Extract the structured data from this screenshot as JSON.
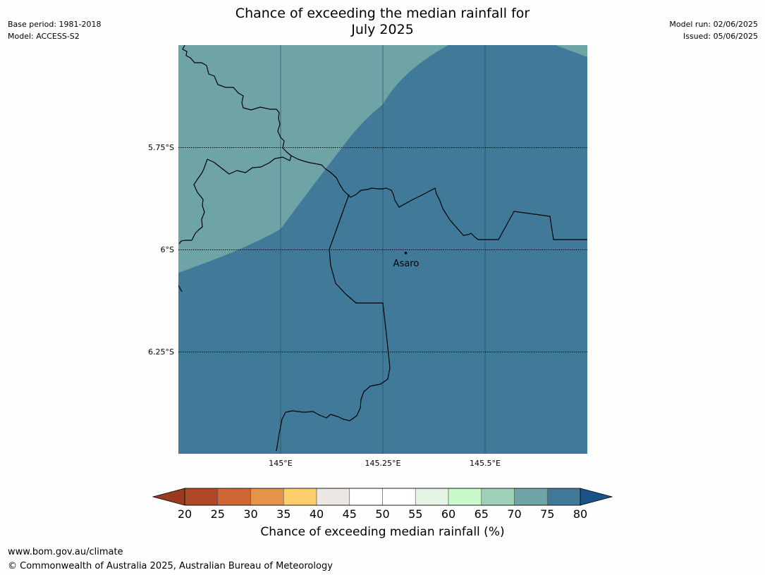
{
  "header": {
    "title_line1": "Chance of exceeding the median rainfall for",
    "title_line2": "July 2025",
    "base_period": "Base period: 1981-2018",
    "model": "Model: ACCESS-S2",
    "model_run": "Model run: 02/06/2025",
    "issued": "Issued: 05/06/2025"
  },
  "map": {
    "lat_labels": [
      "5.75°S",
      "6°S",
      "6.25°S"
    ],
    "lon_labels": [
      "145°E",
      "145.25°E",
      "145.5°E"
    ],
    "place": "Asaro"
  },
  "colorbar": {
    "title": "Chance of exceeding median rainfall (%)",
    "ticks": [
      "20",
      "25",
      "30",
      "35",
      "40",
      "45",
      "50",
      "55",
      "60",
      "65",
      "70",
      "75",
      "80"
    ],
    "colors": [
      "#ad4725",
      "#d06534",
      "#e4944a",
      "#fece6c",
      "#ebe7e2",
      "#ffffff",
      "#ffffff",
      "#e5f5e5",
      "#c9fac9",
      "#9fd1ba",
      "#6fa4a6",
      "#417a98"
    ],
    "under_color": "#9a3a22",
    "over_color": "#1b5389"
  },
  "footer": {
    "url": "www.bom.gov.au/climate",
    "copyright": "© Commonwealth of Australia 2025, Australian Bureau of Meteorology"
  }
}
